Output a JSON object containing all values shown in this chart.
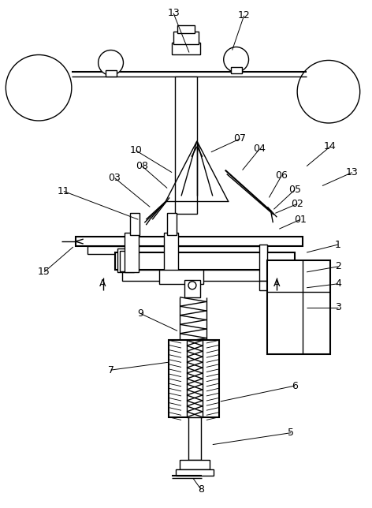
{
  "fig_width": 4.72,
  "fig_height": 6.44,
  "dpi": 100,
  "bg_color": "#ffffff",
  "lc": "#000000",
  "lw": 1.0,
  "lw2": 1.5
}
